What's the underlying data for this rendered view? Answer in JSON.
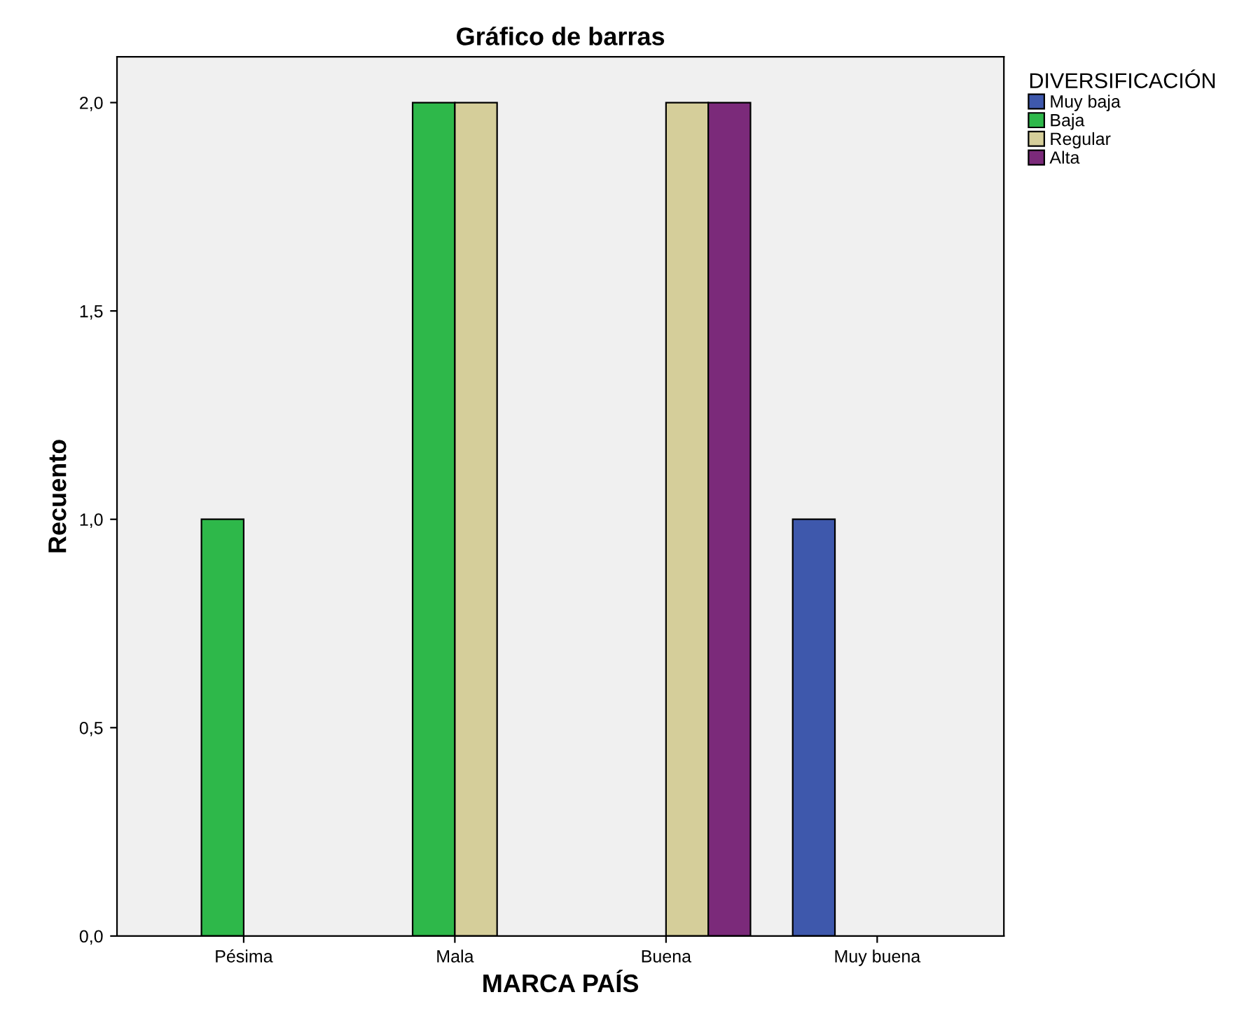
{
  "chart_data": {
    "type": "bar",
    "title": "Gráfico de barras",
    "xlabel": "MARCA PAÍS",
    "ylabel": "Recuento",
    "legend_title": "DIVERSIFICACIÓN",
    "categories": [
      "Pésima",
      "Mala",
      "Buena",
      "Muy buena"
    ],
    "series": [
      {
        "name": "Muy baja",
        "color": "#3e58ac",
        "values": [
          null,
          null,
          null,
          1
        ]
      },
      {
        "name": "Baja",
        "color": "#2eb84a",
        "values": [
          1,
          2,
          null,
          null
        ]
      },
      {
        "name": "Regular",
        "color": "#d5ce9a",
        "values": [
          null,
          2,
          2,
          null
        ]
      },
      {
        "name": "Alta",
        "color": "#7b2a7a",
        "values": [
          null,
          null,
          2,
          null
        ]
      }
    ],
    "ylim": [
      0,
      2.11
    ],
    "yticks": [
      {
        "value": 0,
        "label": "0,0"
      },
      {
        "value": 0.5,
        "label": "0,5"
      },
      {
        "value": 1,
        "label": "1,0"
      },
      {
        "value": 1.5,
        "label": "1,5"
      },
      {
        "value": 2,
        "label": "2,0"
      }
    ],
    "grid": false,
    "legend": "top right"
  }
}
